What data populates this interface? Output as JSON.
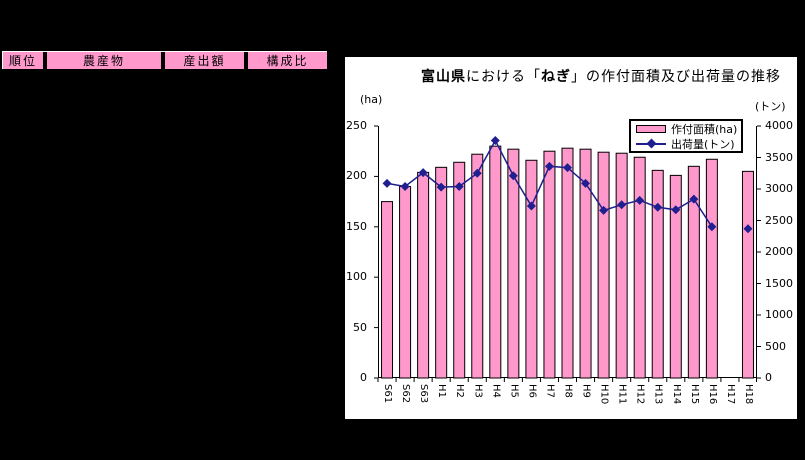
{
  "window": {
    "background": "#000000"
  },
  "table": {
    "header_bg": "#FF99CC",
    "headers": [
      "順位",
      "農産物",
      "産出額",
      "構成比"
    ]
  },
  "chart": {
    "title_bold1": "富山県",
    "title_mid": "における「",
    "title_bold2": "ねぎ",
    "title_tail": "」の作付面積及び出荷量の推移"
  },
  "chart_data": {
    "type": "bar",
    "title": "富山県における「ねぎ」の作付面積及び出荷量の推移",
    "categories": [
      "S61",
      "S62",
      "S63",
      "H1",
      "H2",
      "H3",
      "H4",
      "H5",
      "H6",
      "H7",
      "H8",
      "H9",
      "H10",
      "H11",
      "H12",
      "H13",
      "H14",
      "H15",
      "H16",
      "H17",
      "H18"
    ],
    "series": [
      {
        "name": "作付面積(ha)",
        "type": "bar",
        "axis": "left",
        "color": "#FF99CC",
        "border_color": "#000000",
        "values": [
          175,
          190,
          204,
          209,
          214,
          222,
          230,
          227,
          216,
          225,
          228,
          227,
          224,
          223,
          219,
          206,
          201,
          210,
          217,
          null,
          205
        ]
      },
      {
        "name": "出荷量(トン)",
        "type": "line",
        "axis": "right",
        "color": "#1F1F8F",
        "marker": "diamond",
        "values": [
          3090,
          3040,
          3260,
          3030,
          3040,
          3250,
          3770,
          3210,
          2730,
          3360,
          3340,
          3090,
          2660,
          2750,
          2820,
          2710,
          2670,
          2840,
          2400,
          null,
          2370
        ]
      }
    ],
    "left_axis": {
      "unit": "(ha)",
      "min": 0,
      "max": 250,
      "step": 50
    },
    "right_axis": {
      "unit": "(トン)",
      "min": 0,
      "max": 4000,
      "step": 500
    },
    "grid": false,
    "legend_position": "top-right"
  }
}
